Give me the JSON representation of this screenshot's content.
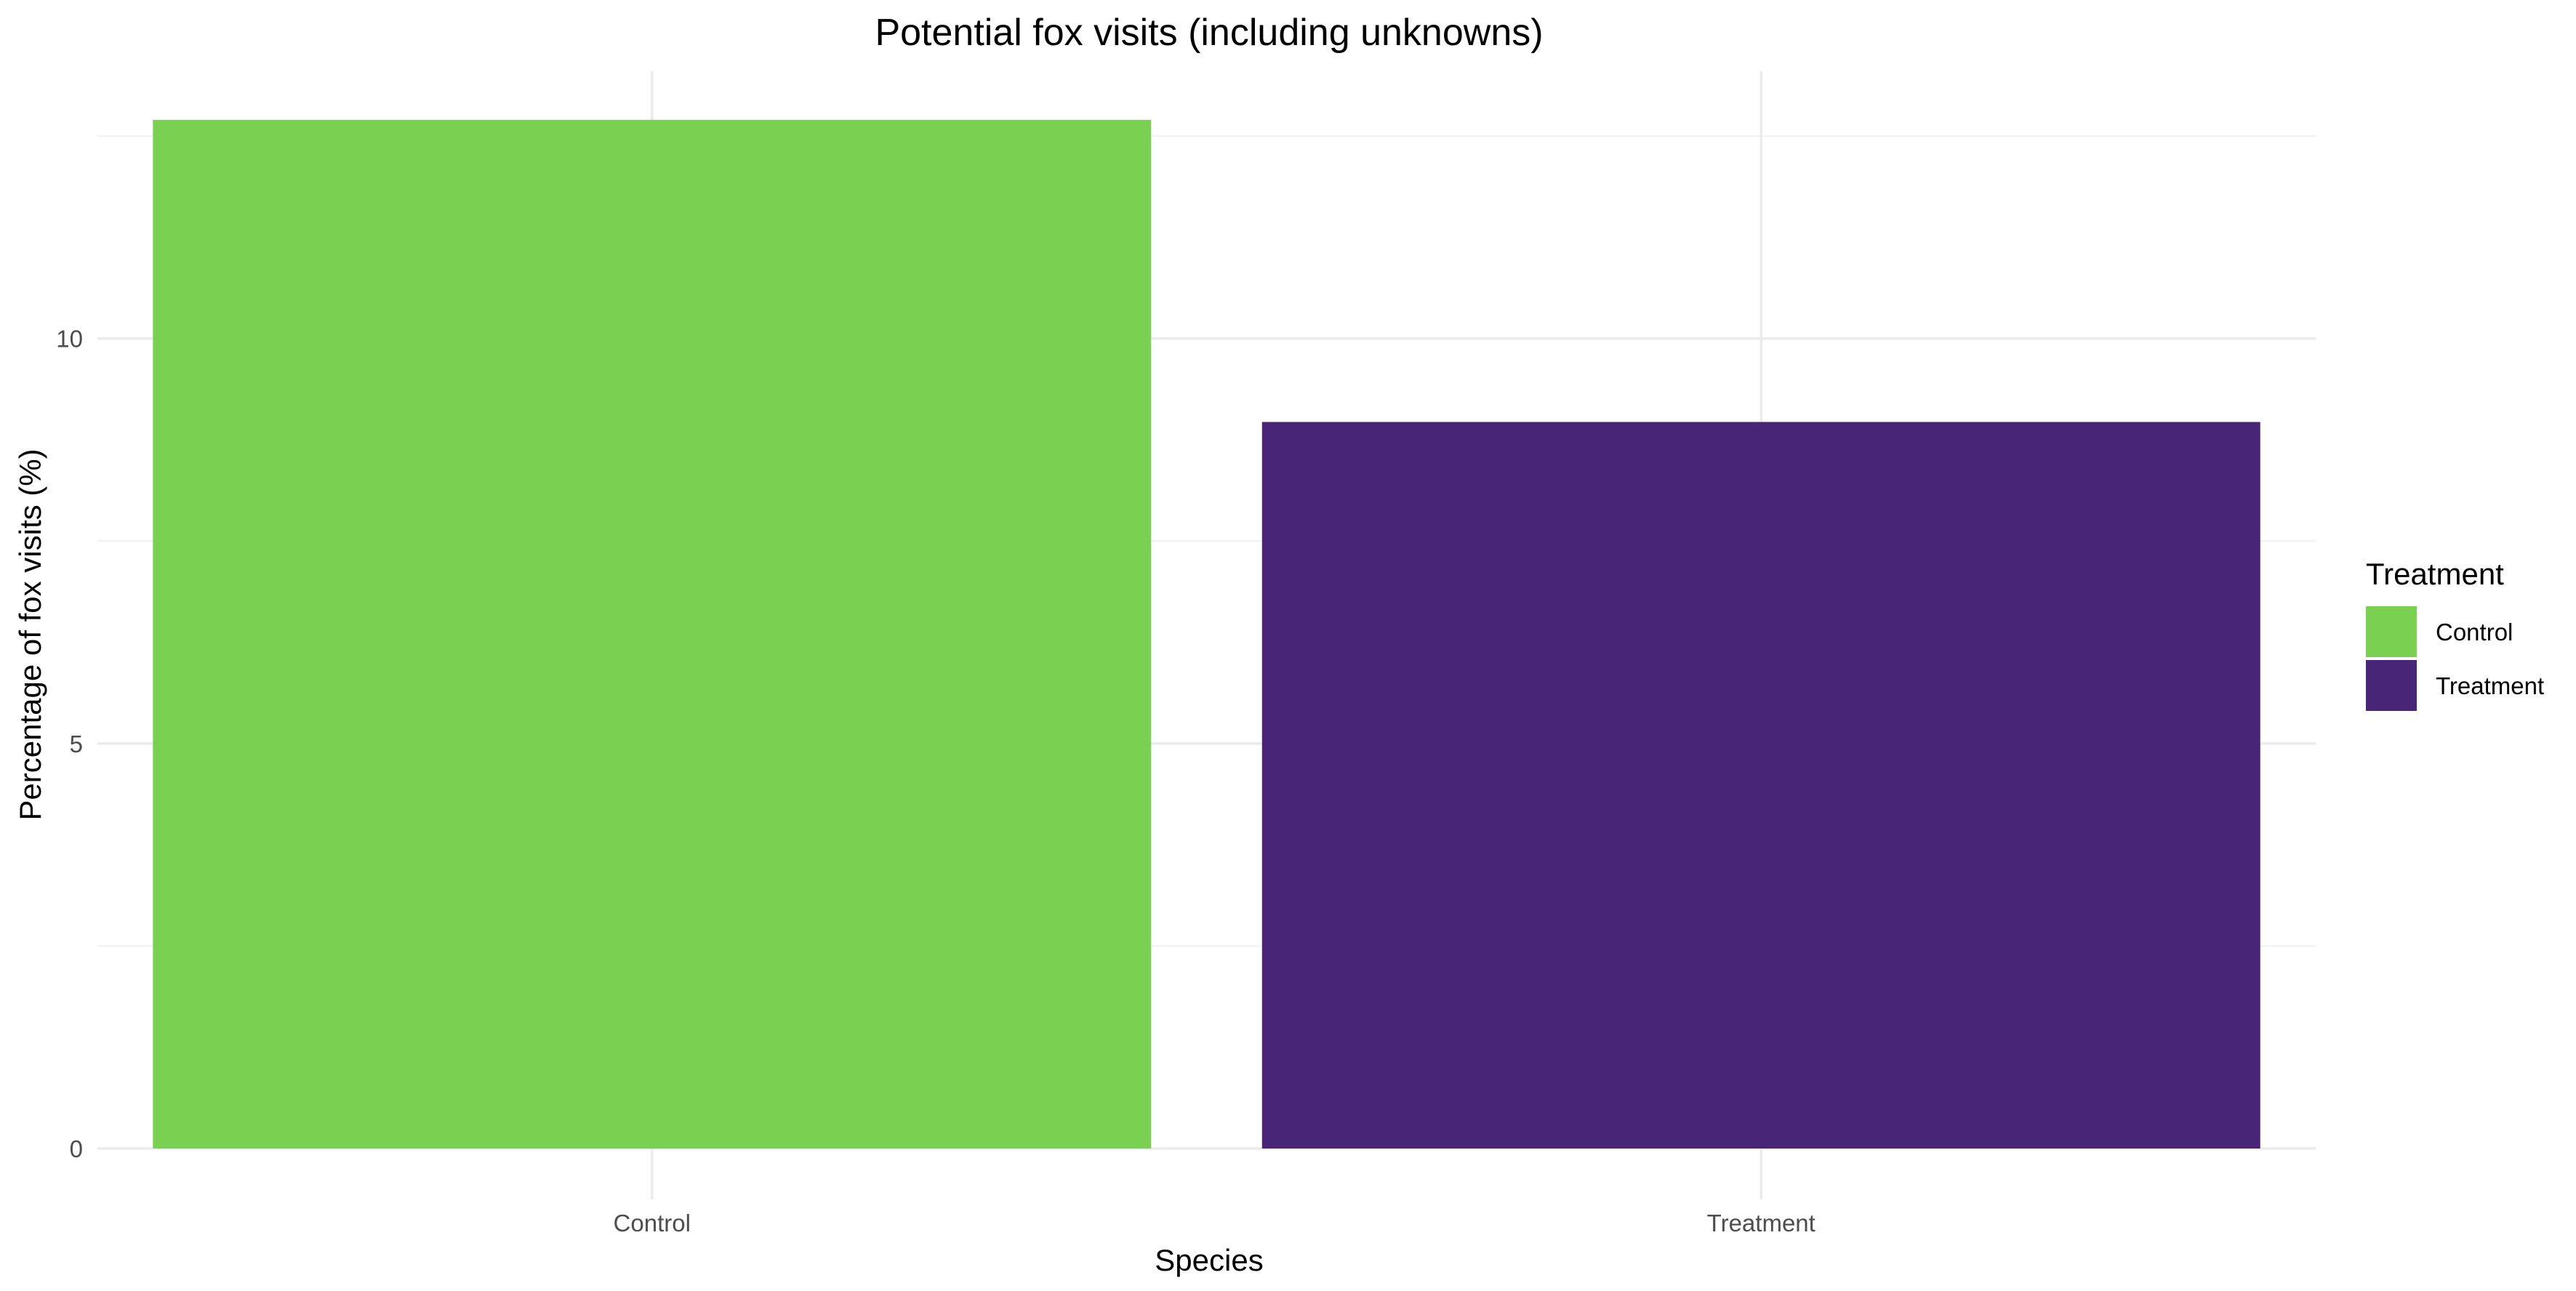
{
  "chart_data": {
    "type": "bar",
    "title": "Potential fox visits (including unknowns)",
    "xlabel": "Species",
    "ylabel": "Percentage of fox visits (%)",
    "categories": [
      "Control",
      "Treatment"
    ],
    "values": [
      12.7,
      8.97
    ],
    "ylim": [
      0,
      13.3
    ],
    "yticks": [
      0,
      5,
      10
    ],
    "grid": true,
    "legend": {
      "title": "Treatment",
      "position": "right",
      "entries": [
        {
          "label": "Control",
          "color": "#7AD151"
        },
        {
          "label": "Treatment",
          "color": "#482576"
        }
      ]
    },
    "colors": [
      "#7AD151",
      "#482576"
    ]
  }
}
